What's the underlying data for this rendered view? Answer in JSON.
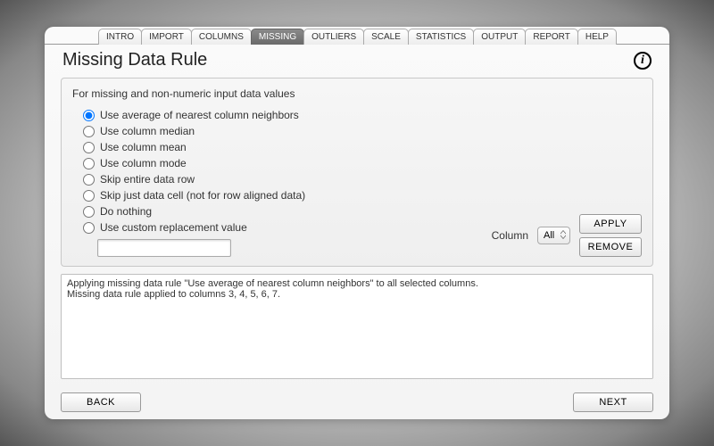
{
  "tabs": {
    "items": [
      "INTRO",
      "IMPORT",
      "COLUMNS",
      "MISSING",
      "OUTLIERS",
      "SCALE",
      "STATISTICS",
      "OUTPUT",
      "REPORT",
      "HELP"
    ],
    "active_index": 3
  },
  "title": "Missing Data Rule",
  "info_glyph": "i",
  "group_label": "For missing and non-numeric input data values",
  "options": [
    "Use average of nearest column neighbors",
    "Use column median",
    "Use column mean",
    "Use column mode",
    "Skip entire data row",
    "Skip just data cell (not for row aligned data)",
    "Do nothing",
    "Use custom replacement value"
  ],
  "selected_option_index": 0,
  "custom_value": "",
  "column_label": "Column",
  "column_select": {
    "options": [
      "All"
    ],
    "selected": "All"
  },
  "buttons": {
    "apply": "APPLY",
    "remove": "REMOVE",
    "back": "BACK",
    "next": "NEXT"
  },
  "log_text": "Applying missing data rule \"Use average of nearest column neighbors\" to all selected columns.\nMissing data rule applied to columns 3, 4, 5, 6, 7.",
  "colors": {
    "panel_bg_top": "#fafafa",
    "panel_bg_bottom": "#f4f4f4",
    "tab_active_bg_top": "#8a8a8a",
    "tab_active_bg_bottom": "#6a6a6a",
    "border": "#999999",
    "group_border": "#c8c8c8",
    "text": "#333333"
  }
}
